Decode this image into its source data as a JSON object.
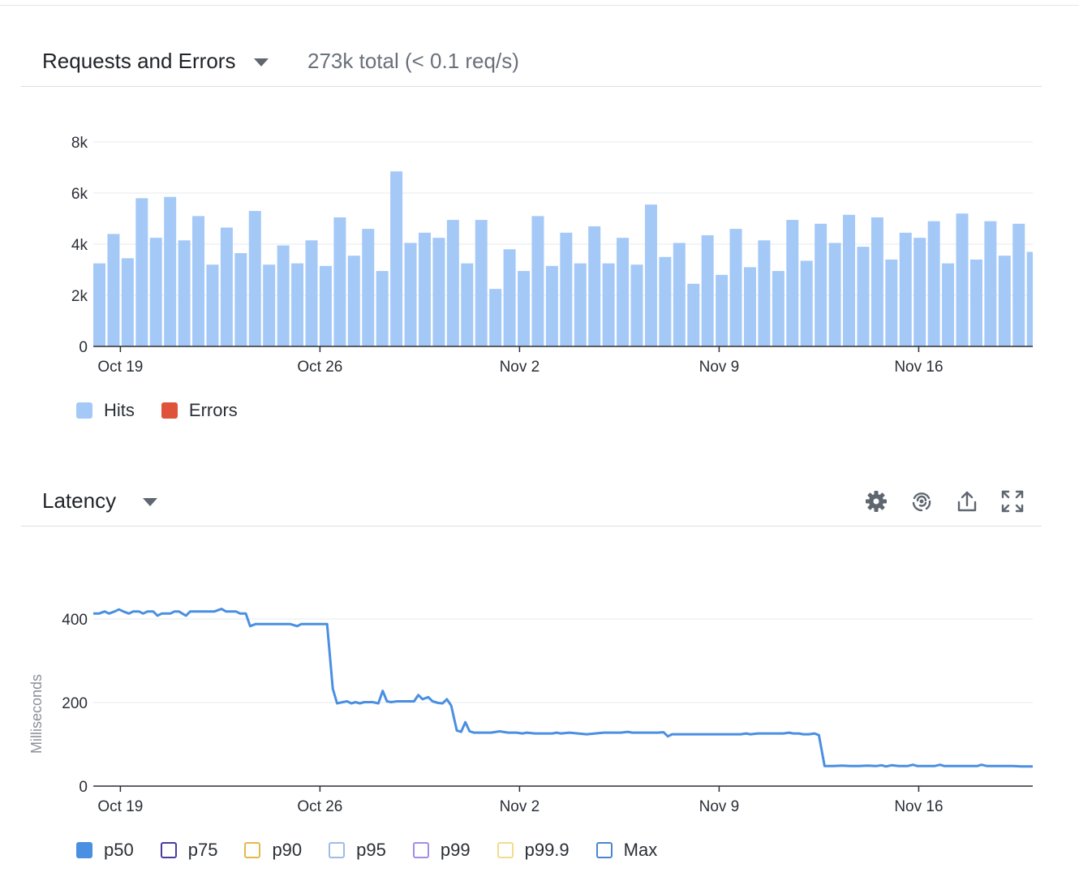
{
  "colors": {
    "hits": "#a4c9f7",
    "errors": "#e0533b",
    "p50": "#4a8fe2",
    "p75": "#4b3aa0",
    "p90": "#e6b84a",
    "p95": "#9cbde8",
    "p99": "#a58ae8",
    "p999": "#f1dc8e",
    "max": "#4a86cf",
    "axis": "#2a2f36",
    "grid": "#e6e8ec"
  },
  "requests": {
    "title": "Requests and Errors",
    "summary": "273k total (< 0.1 req/s)",
    "legend": [
      {
        "label": "Hits",
        "swatch": "filled",
        "color": "#a4c9f7"
      },
      {
        "label": "Errors",
        "swatch": "filled",
        "color": "#e0533b"
      }
    ]
  },
  "latency": {
    "title": "Latency",
    "tools": [
      "gear-icon",
      "fingerprint-icon",
      "share-icon",
      "expand-icon"
    ],
    "legend": [
      {
        "label": "p50",
        "swatch": "filled",
        "color": "#4a8fe2"
      },
      {
        "label": "p75",
        "swatch": "outline",
        "color": "#4b3aa0"
      },
      {
        "label": "p90",
        "swatch": "outline",
        "color": "#e6b84a"
      },
      {
        "label": "p95",
        "swatch": "outline",
        "color": "#9cbde8"
      },
      {
        "label": "p99",
        "swatch": "outline",
        "color": "#a58ae8"
      },
      {
        "label": "p99.9",
        "swatch": "outline",
        "color": "#f1dc8e"
      },
      {
        "label": "Max",
        "swatch": "outline",
        "color": "#4a86cf"
      }
    ]
  },
  "chart_data": [
    {
      "type": "bar",
      "title": "Requests and Errors",
      "x_start": "Oct 18 (12h buckets)",
      "xticks": [
        {
          "label": "Oct 19",
          "day": 1
        },
        {
          "label": "Oct 26",
          "day": 8
        },
        {
          "label": "Nov 2",
          "day": 15
        },
        {
          "label": "Nov 9",
          "day": 22
        },
        {
          "label": "Nov 16",
          "day": 29
        }
      ],
      "xlim_days": [
        0.05,
        33.0
      ],
      "yticks": [
        {
          "label": "0",
          "value": 0
        },
        {
          "label": "2k",
          "value": 2000
        },
        {
          "label": "4k",
          "value": 4000
        },
        {
          "label": "6k",
          "value": 6000
        },
        {
          "label": "8k",
          "value": 8000
        }
      ],
      "ylim": [
        0,
        8000
      ],
      "grid": true,
      "legend_position": "bottom-left",
      "series": [
        {
          "name": "Hits",
          "values": [
            3250,
            4400,
            3450,
            5800,
            4250,
            5850,
            4150,
            5100,
            3200,
            4650,
            3650,
            5300,
            3200,
            3950,
            3250,
            4150,
            3150,
            5050,
            3550,
            4600,
            2950,
            6850,
            4050,
            4450,
            4250,
            4950,
            3250,
            4950,
            2250,
            3800,
            2950,
            5100,
            3150,
            4450,
            3250,
            4700,
            3250,
            4250,
            3200,
            5550,
            3500,
            4050,
            2450,
            4350,
            2800,
            4600,
            3100,
            4150,
            2950,
            4950,
            3350,
            4800,
            4050,
            5150,
            3900,
            5050,
            3400,
            4450,
            4250,
            4900,
            3250,
            5200,
            3400,
            4900,
            3550,
            4800,
            3700
          ]
        },
        {
          "name": "Errors",
          "values": []
        }
      ]
    },
    {
      "type": "line",
      "title": "Latency",
      "ylabel": "Milliseconds",
      "xticks": [
        {
          "label": "Oct 19",
          "day": 1
        },
        {
          "label": "Oct 26",
          "day": 8
        },
        {
          "label": "Nov 2",
          "day": 15
        },
        {
          "label": "Nov 9",
          "day": 22
        },
        {
          "label": "Nov 16",
          "day": 29
        }
      ],
      "xlim_days": [
        0.05,
        33.0
      ],
      "yticks": [
        {
          "label": "0",
          "value": 0
        },
        {
          "label": "200",
          "value": 200
        },
        {
          "label": "400",
          "value": 400
        }
      ],
      "ylim": [
        0,
        400
      ],
      "grid": true,
      "legend_position": "bottom-left",
      "series": [
        {
          "name": "p50",
          "points": [
            [
              0.05,
              413
            ],
            [
              0.25,
              413
            ],
            [
              0.45,
              418
            ],
            [
              0.6,
              413
            ],
            [
              0.8,
              418
            ],
            [
              0.95,
              423
            ],
            [
              1.1,
              418
            ],
            [
              1.3,
              413
            ],
            [
              1.45,
              418
            ],
            [
              1.65,
              418
            ],
            [
              1.8,
              413
            ],
            [
              1.95,
              418
            ],
            [
              2.15,
              418
            ],
            [
              2.3,
              408
            ],
            [
              2.45,
              413
            ],
            [
              2.75,
              413
            ],
            [
              2.9,
              418
            ],
            [
              3.05,
              418
            ],
            [
              3.3,
              408
            ],
            [
              3.45,
              418
            ],
            [
              3.75,
              418
            ],
            [
              4.05,
              418
            ],
            [
              4.3,
              418
            ],
            [
              4.55,
              424
            ],
            [
              4.7,
              418
            ],
            [
              5.05,
              418
            ],
            [
              5.2,
              413
            ],
            [
              5.4,
              413
            ],
            [
              5.55,
              383
            ],
            [
              5.75,
              388
            ],
            [
              6.05,
              388
            ],
            [
              6.35,
              388
            ],
            [
              6.65,
              388
            ],
            [
              6.95,
              388
            ],
            [
              7.2,
              383
            ],
            [
              7.35,
              388
            ],
            [
              7.65,
              388
            ],
            [
              7.95,
              388
            ],
            [
              8.25,
              388
            ],
            [
              8.45,
              233
            ],
            [
              8.6,
              198
            ],
            [
              8.8,
              201
            ],
            [
              8.95,
              203
            ],
            [
              9.1,
              198
            ],
            [
              9.25,
              201
            ],
            [
              9.4,
              198
            ],
            [
              9.55,
              201
            ],
            [
              9.85,
              201
            ],
            [
              10.05,
              198
            ],
            [
              10.2,
              228
            ],
            [
              10.35,
              203
            ],
            [
              10.5,
              201
            ],
            [
              10.7,
              203
            ],
            [
              11.0,
              203
            ],
            [
              11.3,
              203
            ],
            [
              11.45,
              218
            ],
            [
              11.6,
              208
            ],
            [
              11.8,
              213
            ],
            [
              11.95,
              203
            ],
            [
              12.15,
              199
            ],
            [
              12.3,
              198
            ],
            [
              12.45,
              208
            ],
            [
              12.6,
              193
            ],
            [
              12.8,
              133
            ],
            [
              12.95,
              130
            ],
            [
              13.1,
              153
            ],
            [
              13.25,
              131
            ],
            [
              13.4,
              128
            ],
            [
              13.7,
              128
            ],
            [
              14.0,
              128
            ],
            [
              14.3,
              131
            ],
            [
              14.6,
              128
            ],
            [
              14.9,
              128
            ],
            [
              15.1,
              126
            ],
            [
              15.25,
              128
            ],
            [
              15.55,
              126
            ],
            [
              15.85,
              126
            ],
            [
              16.15,
              126
            ],
            [
              16.3,
              128
            ],
            [
              16.45,
              126
            ],
            [
              16.75,
              128
            ],
            [
              17.05,
              126
            ],
            [
              17.35,
              124
            ],
            [
              17.65,
              126
            ],
            [
              17.95,
              128
            ],
            [
              18.25,
              128
            ],
            [
              18.55,
              128
            ],
            [
              18.8,
              130
            ],
            [
              18.95,
              128
            ],
            [
              19.25,
              128
            ],
            [
              19.55,
              128
            ],
            [
              19.85,
              128
            ],
            [
              20.05,
              129
            ],
            [
              20.2,
              119
            ],
            [
              20.35,
              124
            ],
            [
              20.65,
              124
            ],
            [
              20.95,
              124
            ],
            [
              21.25,
              124
            ],
            [
              21.55,
              124
            ],
            [
              21.85,
              124
            ],
            [
              22.15,
              124
            ],
            [
              22.45,
              124
            ],
            [
              22.75,
              124
            ],
            [
              22.95,
              126
            ],
            [
              23.1,
              124
            ],
            [
              23.35,
              126
            ],
            [
              23.65,
              126
            ],
            [
              23.95,
              126
            ],
            [
              24.25,
              126
            ],
            [
              24.45,
              128
            ],
            [
              24.6,
              126
            ],
            [
              24.8,
              126
            ],
            [
              24.95,
              124
            ],
            [
              25.15,
              124
            ],
            [
              25.35,
              126
            ],
            [
              25.5,
              122
            ],
            [
              25.7,
              48
            ],
            [
              26.0,
              48
            ],
            [
              26.3,
              49
            ],
            [
              26.6,
              48
            ],
            [
              26.9,
              48
            ],
            [
              27.2,
              49
            ],
            [
              27.5,
              48
            ],
            [
              27.7,
              50
            ],
            [
              27.85,
              47
            ],
            [
              28.05,
              50
            ],
            [
              28.3,
              48
            ],
            [
              28.6,
              48
            ],
            [
              28.8,
              51
            ],
            [
              28.95,
              48
            ],
            [
              29.25,
              48
            ],
            [
              29.55,
              48
            ],
            [
              29.75,
              51
            ],
            [
              29.9,
              48
            ],
            [
              30.2,
              48
            ],
            [
              30.5,
              48
            ],
            [
              30.8,
              48
            ],
            [
              31.05,
              48
            ],
            [
              31.2,
              51
            ],
            [
              31.4,
              48
            ],
            [
              31.7,
              48
            ],
            [
              32.0,
              48
            ],
            [
              32.3,
              48
            ],
            [
              32.6,
              47
            ],
            [
              33.0,
              47
            ]
          ]
        },
        {
          "name": "p75",
          "points": []
        },
        {
          "name": "p90",
          "points": []
        },
        {
          "name": "p95",
          "points": []
        },
        {
          "name": "p99",
          "points": []
        },
        {
          "name": "p99.9",
          "points": []
        },
        {
          "name": "Max",
          "points": []
        }
      ]
    }
  ]
}
